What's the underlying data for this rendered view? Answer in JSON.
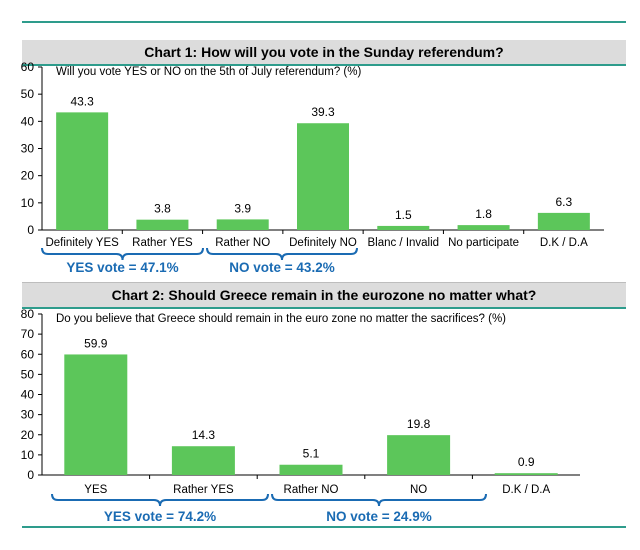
{
  "colors": {
    "bar": "#5cc65a",
    "bracket": "#1a6bb3",
    "accent_line": "#2e9c8c",
    "title_band": "#dcdcdc"
  },
  "chart_data": [
    {
      "type": "bar",
      "title": "Chart 1: How will you vote in the Sunday referendum?",
      "subtitle": "Will you vote YES or NO on the 5th of July referendum? (%)",
      "categories": [
        "Definitely YES",
        "Rather YES",
        "Rather NO",
        "Definitely NO",
        "Blanc / Invalid",
        "No participate",
        "D.K / D.A"
      ],
      "values": [
        43.3,
        3.8,
        3.9,
        39.3,
        1.5,
        1.8,
        6.3
      ],
      "value_labels": [
        "43.3",
        "3.8",
        "3.9",
        "39.3",
        "1.5",
        "1.8",
        "6.3"
      ],
      "ylim": [
        0,
        60
      ],
      "yticks": [
        "0",
        "10",
        "20",
        "30",
        "40",
        "50",
        "60"
      ],
      "brackets": [
        {
          "label": "YES vote  = 47.1%",
          "from": 0,
          "to": 1
        },
        {
          "label": "NO vote  = 43.2%",
          "from": 2,
          "to": 3
        }
      ]
    },
    {
      "type": "bar",
      "title": "Chart 2: Should Greece remain in the eurozone no matter what?",
      "subtitle": "Do you believe that Greece should remain in the euro zone no matter the sacrifices? (%)",
      "categories": [
        "YES",
        "Rather YES",
        "Rather NO",
        "NO",
        "D.K / D.A"
      ],
      "values": [
        59.9,
        14.3,
        5.1,
        19.8,
        0.9
      ],
      "value_labels": [
        "59.9",
        "14.3",
        "5.1",
        "19.8",
        "0.9"
      ],
      "ylim": [
        0,
        80
      ],
      "yticks": [
        "0",
        "10",
        "20",
        "30",
        "40",
        "50",
        "60",
        "70",
        "80"
      ],
      "brackets": [
        {
          "label": "YES vote  = 74.2%",
          "from": 0,
          "to": 1
        },
        {
          "label": "NO vote  = 24.9%",
          "from": 2,
          "to": 3
        }
      ]
    }
  ]
}
